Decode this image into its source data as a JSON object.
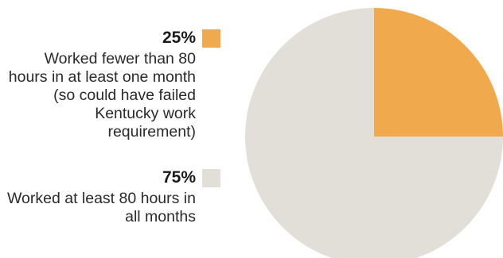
{
  "chart_data": {
    "type": "pie",
    "title": "",
    "slices": [
      {
        "label": "25%",
        "value": 25,
        "description": "Worked fewer than 80 hours in at least one month (so could have failed Kentucky work requirement)",
        "color": "#F0A94C"
      },
      {
        "label": "75%",
        "value": 75,
        "description": "Worked at least 80 hours in all months",
        "color": "#E2DED8"
      }
    ],
    "legend_placement": "left"
  }
}
